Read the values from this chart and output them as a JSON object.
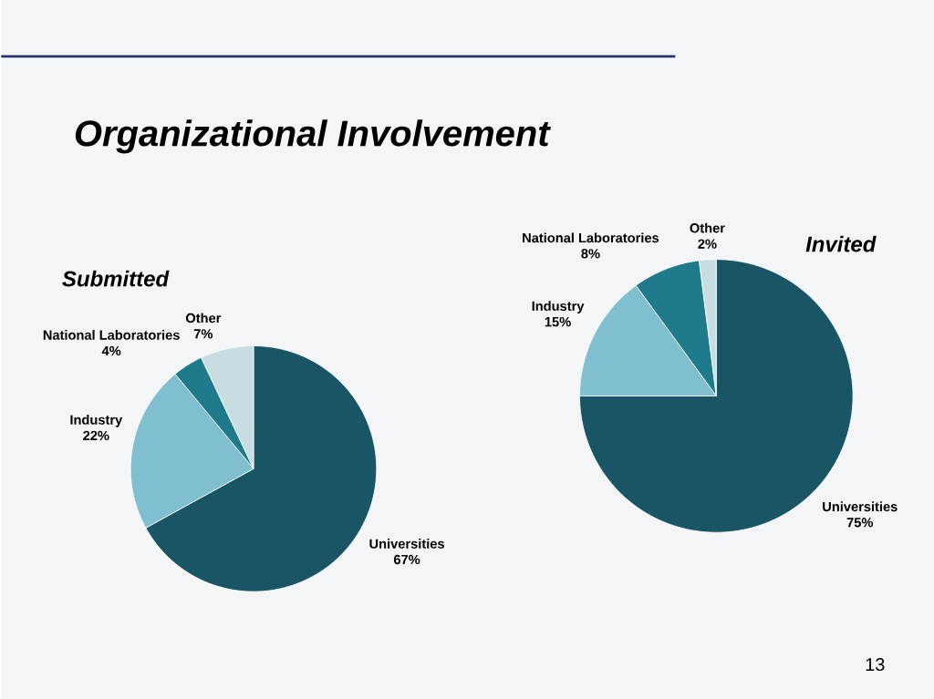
{
  "chart_data": [
    {
      "type": "pie",
      "title": "Organizational Involvement",
      "subtitle": "Submitted",
      "categories": [
        "Universities",
        "Industry",
        "National Laboratories",
        "Other"
      ],
      "values": [
        67,
        22,
        4,
        7
      ],
      "value_labels": [
        "67%",
        "22%",
        "4%",
        "7%"
      ],
      "colors": [
        "#1a5566",
        "#7fbfcf",
        "#1f7a8c",
        "#c8dde0"
      ]
    },
    {
      "type": "pie",
      "title": "Invited",
      "categories": [
        "Universities",
        "Industry",
        "National Laboratories",
        "Other"
      ],
      "values": [
        75,
        15,
        8,
        2
      ],
      "value_labels": [
        "75%",
        "15%",
        "8%",
        "2%"
      ],
      "colors": [
        "#1a5566",
        "#7fbfcf",
        "#1f7a8c",
        "#c8dde0"
      ],
      "annotations": [
        "13"
      ]
    }
  ]
}
